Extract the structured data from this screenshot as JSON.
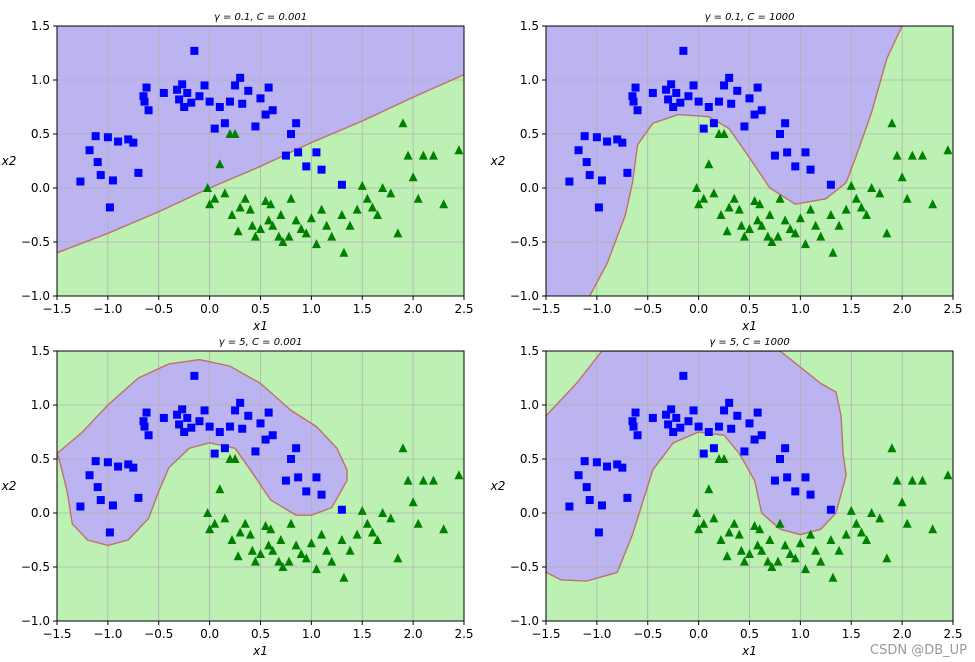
{
  "watermark": "CSDN @DB_UP",
  "chart_data": [
    {
      "type": "scatter",
      "title": "γ = 0.1, C = 0.001",
      "xlabel": "x1",
      "ylabel": "x2",
      "xlim": [
        -1.5,
        2.5
      ],
      "ylim": [
        -1.0,
        1.5
      ],
      "xticks": [
        "−1.5",
        "−1.0",
        "−0.5",
        "0.0",
        "0.5",
        "1.0",
        "1.5",
        "2.0",
        "2.5"
      ],
      "yticks": [
        "−1.0",
        "−0.5",
        "0.0",
        "0.5",
        "1.0",
        "1.5"
      ],
      "grid": true,
      "colors": {
        "class0_region": "#bcb4f0",
        "class1_region": "#bdf1b4",
        "boundary": "#c0706a"
      },
      "boundary": [
        [
          -1.5,
          -0.6
        ],
        [
          -1.0,
          -0.42
        ],
        [
          -0.5,
          -0.22
        ],
        [
          0.0,
          0.0
        ],
        [
          0.5,
          0.2
        ],
        [
          1.0,
          0.42
        ],
        [
          1.5,
          0.62
        ],
        [
          2.0,
          0.84
        ],
        [
          2.5,
          1.05
        ]
      ]
    },
    {
      "type": "scatter",
      "title": "γ = 0.1, C = 1000",
      "xlabel": "x1",
      "ylabel": "x2",
      "xlim": [
        -1.5,
        2.5
      ],
      "ylim": [
        -1.0,
        1.5
      ],
      "xticks": [
        "−1.5",
        "−1.0",
        "−0.5",
        "0.0",
        "0.5",
        "1.0",
        "1.5",
        "2.0",
        "2.5"
      ],
      "yticks": [
        "−1.0",
        "−0.5",
        "0.0",
        "0.5",
        "1.0",
        "1.5"
      ],
      "grid": true,
      "colors": {
        "class0_region": "#bcb4f0",
        "class1_region": "#bdf1b4",
        "boundary": "#c0706a"
      },
      "boundary": [
        [
          -1.07,
          -1.0
        ],
        [
          -0.9,
          -0.7
        ],
        [
          -0.72,
          -0.25
        ],
        [
          -0.65,
          0.05
        ],
        [
          -0.6,
          0.4
        ],
        [
          -0.45,
          0.6
        ],
        [
          -0.2,
          0.68
        ],
        [
          0.1,
          0.66
        ],
        [
          0.3,
          0.55
        ],
        [
          0.5,
          0.28
        ],
        [
          0.7,
          0.0
        ],
        [
          0.95,
          -0.15
        ],
        [
          1.25,
          -0.1
        ],
        [
          1.45,
          0.05
        ],
        [
          1.55,
          0.3
        ],
        [
          1.7,
          0.7
        ],
        [
          1.85,
          1.2
        ],
        [
          2.0,
          1.5
        ]
      ]
    },
    {
      "type": "scatter",
      "title": "γ = 5, C = 0.001",
      "xlabel": "x1",
      "ylabel": "x2",
      "xlim": [
        -1.5,
        2.5
      ],
      "ylim": [
        -1.0,
        1.5
      ],
      "xticks": [
        "−1.5",
        "−1.0",
        "−0.5",
        "0.0",
        "0.5",
        "1.0",
        "1.5",
        "2.0",
        "2.5"
      ],
      "yticks": [
        "−1.0",
        "−0.5",
        "0.0",
        "0.5",
        "1.0",
        "1.5"
      ],
      "grid": true,
      "colors": {
        "class0_region": "#bcb4f0",
        "class1_region": "#bdf1b4",
        "boundary": "#c0706a"
      },
      "boundary": [
        [
          -1.5,
          0.55
        ],
        [
          -1.25,
          0.75
        ],
        [
          -1.0,
          1.0
        ],
        [
          -0.7,
          1.25
        ],
        [
          -0.4,
          1.38
        ],
        [
          -0.1,
          1.42
        ],
        [
          0.2,
          1.36
        ],
        [
          0.5,
          1.2
        ],
        [
          0.8,
          0.95
        ],
        [
          1.05,
          0.8
        ],
        [
          1.25,
          0.6
        ],
        [
          1.35,
          0.4
        ],
        [
          1.35,
          0.3
        ],
        [
          1.2,
          0.05
        ],
        [
          1.0,
          -0.02
        ],
        [
          0.85,
          -0.02
        ],
        [
          0.6,
          0.12
        ],
        [
          0.4,
          0.4
        ],
        [
          0.25,
          0.6
        ],
        [
          0.0,
          0.65
        ],
        [
          -0.2,
          0.6
        ],
        [
          -0.4,
          0.42
        ],
        [
          -0.5,
          0.2
        ],
        [
          -0.6,
          -0.05
        ],
        [
          -0.8,
          -0.25
        ],
        [
          -1.0,
          -0.3
        ],
        [
          -1.2,
          -0.25
        ],
        [
          -1.35,
          -0.1
        ],
        [
          -1.4,
          0.2
        ],
        [
          -1.48,
          0.5
        ],
        [
          -1.5,
          0.55
        ]
      ],
      "boundary_closed": true
    },
    {
      "type": "scatter",
      "title": "γ = 5, C = 1000",
      "xlabel": "x1",
      "ylabel": "x2",
      "xlim": [
        -1.5,
        2.5
      ],
      "ylim": [
        -1.0,
        1.5
      ],
      "xticks": [
        "−1.5",
        "−1.0",
        "−0.5",
        "0.0",
        "0.5",
        "1.0",
        "1.5",
        "2.0",
        "2.5"
      ],
      "yticks": [
        "−1.0",
        "−0.5",
        "0.0",
        "0.5",
        "1.0",
        "1.5"
      ],
      "grid": true,
      "colors": {
        "class0_region": "#bcb4f0",
        "class1_region": "#bdf1b4",
        "boundary": "#c0706a"
      },
      "boundary": [
        [
          -1.5,
          0.9
        ],
        [
          -1.2,
          1.2
        ],
        [
          -0.95,
          1.5
        ],
        [
          0.8,
          1.5
        ],
        [
          1.0,
          1.35
        ],
        [
          1.2,
          1.2
        ],
        [
          1.35,
          1.12
        ],
        [
          1.4,
          0.9
        ],
        [
          1.42,
          0.55
        ],
        [
          1.45,
          0.35
        ],
        [
          1.35,
          0.0
        ],
        [
          1.2,
          -0.15
        ],
        [
          1.0,
          -0.2
        ],
        [
          0.8,
          -0.15
        ],
        [
          0.62,
          0.0
        ],
        [
          0.55,
          0.3
        ],
        [
          0.4,
          0.55
        ],
        [
          0.25,
          0.72
        ],
        [
          0.0,
          0.75
        ],
        [
          -0.25,
          0.65
        ],
        [
          -0.45,
          0.4
        ],
        [
          -0.55,
          0.1
        ],
        [
          -0.65,
          -0.2
        ],
        [
          -0.8,
          -0.55
        ],
        [
          -1.1,
          -0.63
        ],
        [
          -1.35,
          -0.62
        ],
        [
          -1.5,
          -0.55
        ]
      ],
      "boundary_closed": true
    }
  ],
  "points": {
    "class0": [
      [
        -1.27,
        0.06
      ],
      [
        -1.18,
        0.35
      ],
      [
        -1.12,
        0.48
      ],
      [
        -1.1,
        0.24
      ],
      [
        -1.07,
        0.12
      ],
      [
        -1.0,
        0.47
      ],
      [
        -0.98,
        -0.18
      ],
      [
        -0.95,
        0.07
      ],
      [
        -0.9,
        0.43
      ],
      [
        -0.8,
        0.45
      ],
      [
        -0.75,
        0.42
      ],
      [
        -0.7,
        0.14
      ],
      [
        -0.65,
        0.85
      ],
      [
        -0.64,
        0.8
      ],
      [
        -0.62,
        0.93
      ],
      [
        -0.6,
        0.72
      ],
      [
        -0.45,
        0.88
      ],
      [
        -0.32,
        0.91
      ],
      [
        -0.3,
        0.82
      ],
      [
        -0.27,
        0.96
      ],
      [
        -0.25,
        0.75
      ],
      [
        -0.22,
        0.88
      ],
      [
        -0.18,
        0.79
      ],
      [
        -0.15,
        1.27
      ],
      [
        -0.1,
        0.85
      ],
      [
        -0.05,
        0.95
      ],
      [
        0.0,
        0.8
      ],
      [
        0.05,
        0.55
      ],
      [
        0.1,
        0.75
      ],
      [
        0.15,
        0.6
      ],
      [
        0.2,
        0.8
      ],
      [
        0.25,
        0.95
      ],
      [
        0.3,
        1.02
      ],
      [
        0.32,
        0.78
      ],
      [
        0.38,
        0.9
      ],
      [
        0.45,
        0.57
      ],
      [
        0.5,
        0.83
      ],
      [
        0.55,
        0.68
      ],
      [
        0.58,
        0.93
      ],
      [
        0.62,
        0.72
      ],
      [
        0.75,
        0.3
      ],
      [
        0.8,
        0.5
      ],
      [
        0.85,
        0.6
      ],
      [
        0.87,
        0.33
      ],
      [
        0.95,
        0.2
      ],
      [
        1.05,
        0.33
      ],
      [
        1.1,
        0.17
      ],
      [
        1.3,
        0.03
      ]
    ],
    "class1": [
      [
        0.05,
        -0.1
      ],
      [
        0.2,
        0.5
      ],
      [
        0.1,
        0.22
      ],
      [
        0.25,
        0.5
      ],
      [
        0.3,
        -0.18
      ],
      [
        0.35,
        -0.1
      ],
      [
        0.4,
        -0.2
      ],
      [
        0.42,
        -0.35
      ],
      [
        0.45,
        -0.45
      ],
      [
        0.55,
        -0.12
      ],
      [
        0.58,
        -0.3
      ],
      [
        0.62,
        -0.35
      ],
      [
        0.7,
        -0.25
      ],
      [
        0.72,
        -0.5
      ],
      [
        0.78,
        -0.45
      ],
      [
        0.8,
        -0.1
      ],
      [
        0.85,
        -0.3
      ],
      [
        0.9,
        -0.38
      ],
      [
        0.95,
        -0.42
      ],
      [
        1.0,
        -0.28
      ],
      [
        1.05,
        -0.52
      ],
      [
        1.1,
        -0.2
      ],
      [
        1.15,
        -0.35
      ],
      [
        1.2,
        -0.45
      ],
      [
        1.3,
        -0.25
      ],
      [
        1.32,
        -0.6
      ],
      [
        1.38,
        -0.35
      ],
      [
        1.45,
        -0.2
      ],
      [
        1.5,
        0.02
      ],
      [
        1.55,
        -0.1
      ],
      [
        1.6,
        -0.18
      ],
      [
        1.65,
        -0.25
      ],
      [
        1.7,
        0.0
      ],
      [
        1.78,
        -0.05
      ],
      [
        1.85,
        -0.42
      ],
      [
        1.9,
        0.6
      ],
      [
        1.95,
        0.3
      ],
      [
        2.0,
        0.1
      ],
      [
        2.05,
        -0.1
      ],
      [
        2.1,
        0.3
      ],
      [
        2.2,
        0.3
      ],
      [
        2.3,
        -0.15
      ],
      [
        2.45,
        0.35
      ],
      [
        -0.02,
        0.0
      ],
      [
        0.0,
        -0.15
      ],
      [
        0.15,
        -0.05
      ],
      [
        0.22,
        -0.25
      ],
      [
        0.28,
        -0.4
      ],
      [
        0.5,
        -0.38
      ],
      [
        0.6,
        -0.15
      ],
      [
        0.68,
        -0.45
      ]
    ]
  }
}
